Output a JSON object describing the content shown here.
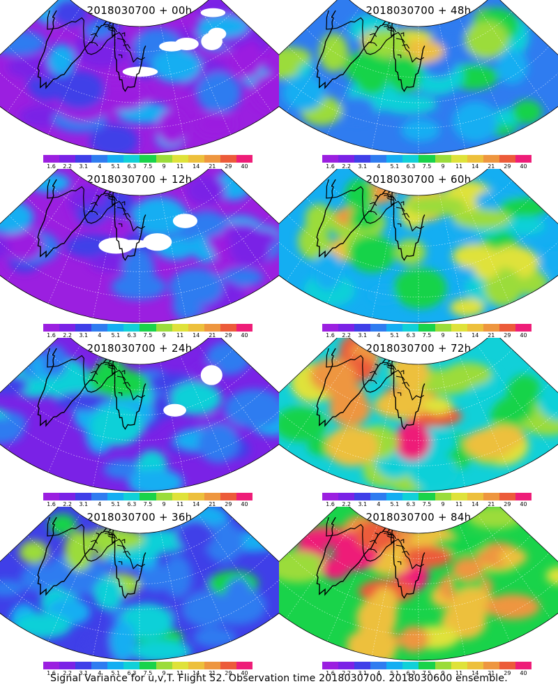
{
  "caption": "Signal Variance for u,v,T. Flight 52. Observation time 2018030700. 2018030600 ensemble.",
  "colorbar": {
    "labels": [
      "1.6",
      "2.2",
      "3.1",
      "4",
      "5.1",
      "6.3",
      "7.5",
      "9",
      "11",
      "14",
      "21",
      "29",
      "40"
    ],
    "colors": [
      "#9b1fe0",
      "#7a22e6",
      "#3f3fe8",
      "#2f7cf0",
      "#14aef2",
      "#11d0d8",
      "#19d34a",
      "#9bdc3a",
      "#dfe23a",
      "#edc03c",
      "#ee963f",
      "#ec5b3a",
      "#ee1d78"
    ]
  },
  "panels": [
    {
      "title": "2018030700 + 00h",
      "level": 0
    },
    {
      "title": "2018030700 + 48h",
      "level": 4
    },
    {
      "title": "2018030700 + 12h",
      "level": 1
    },
    {
      "title": "2018030700 + 60h",
      "level": 5
    },
    {
      "title": "2018030700 + 24h",
      "level": 2
    },
    {
      "title": "2018030700 + 72h",
      "level": 6
    },
    {
      "title": "2018030700 + 36h",
      "level": 3
    },
    {
      "title": "2018030700 + 84h",
      "level": 7
    }
  ]
}
